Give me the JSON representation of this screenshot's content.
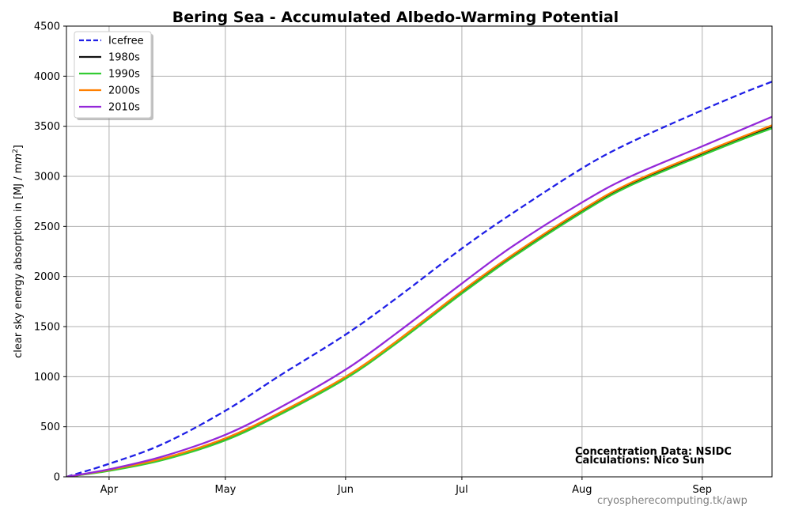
{
  "chart_data": {
    "type": "line",
    "title": "Bering Sea - Accumulated Albedo-Warming Potential",
    "ylabel_prefix": "clear sky energy absorption in  [MJ / m",
    "ylabel_sup": "2",
    "ylabel_suffix": "]",
    "xlabel": "",
    "xlim": [
      80,
      262
    ],
    "ylim": [
      0,
      4500
    ],
    "yticks": [
      0,
      500,
      1000,
      1500,
      2000,
      2500,
      3000,
      3500,
      4000,
      4500
    ],
    "ytick_labels": [
      "0",
      "500",
      "1000",
      "1500",
      "2000",
      "2500",
      "3000",
      "3500",
      "4000",
      "4500"
    ],
    "xticks": [
      91,
      121,
      152,
      182,
      213,
      244
    ],
    "xtick_labels": [
      "Apr",
      "May",
      "Jun",
      "Jul",
      "Aug",
      "Sep"
    ],
    "grid": true,
    "legend_position": "top-left",
    "x_unit": "day of year",
    "series": [
      {
        "name": "Icefree",
        "color": "#1f1fe6",
        "dash": true,
        "x": [
          80,
          91,
          105,
          121,
          135,
          152,
          165,
          182,
          195,
          213,
          225,
          244,
          255,
          262
        ],
        "y": [
          0,
          130,
          330,
          660,
          1010,
          1420,
          1780,
          2280,
          2630,
          3080,
          3330,
          3660,
          3840,
          3945
        ]
      },
      {
        "name": "1980s",
        "color": "#111111",
        "dash": false,
        "x": [
          80,
          91,
          105,
          121,
          135,
          152,
          165,
          182,
          195,
          213,
          225,
          244,
          255,
          262
        ],
        "y": [
          0,
          65,
          180,
          375,
          630,
          990,
          1340,
          1840,
          2200,
          2650,
          2910,
          3220,
          3390,
          3490
        ]
      },
      {
        "name": "1990s",
        "color": "#33cc33",
        "dash": false,
        "x": [
          80,
          91,
          105,
          121,
          135,
          152,
          165,
          182,
          195,
          213,
          225,
          244,
          255,
          262
        ],
        "y": [
          0,
          60,
          170,
          365,
          620,
          980,
          1330,
          1830,
          2190,
          2640,
          2900,
          3210,
          3380,
          3480
        ]
      },
      {
        "name": "2000s",
        "color": "#ff8000",
        "dash": false,
        "x": [
          80,
          91,
          105,
          121,
          135,
          152,
          165,
          182,
          195,
          213,
          225,
          244,
          255,
          262
        ],
        "y": [
          0,
          70,
          185,
          385,
          640,
          1000,
          1350,
          1855,
          2215,
          2665,
          2925,
          3235,
          3405,
          3510
        ]
      },
      {
        "name": "2010s",
        "color": "#9428d9",
        "dash": false,
        "x": [
          80,
          91,
          105,
          121,
          135,
          152,
          165,
          182,
          195,
          213,
          225,
          244,
          255,
          262
        ],
        "y": [
          0,
          75,
          205,
          420,
          690,
          1070,
          1430,
          1930,
          2300,
          2740,
          2990,
          3300,
          3480,
          3595
        ]
      }
    ],
    "annotations": [
      "Concentration Data: NSIDC",
      "Calculations: Nico Sun"
    ],
    "source": "cryospherecomputing.tk/awp"
  }
}
